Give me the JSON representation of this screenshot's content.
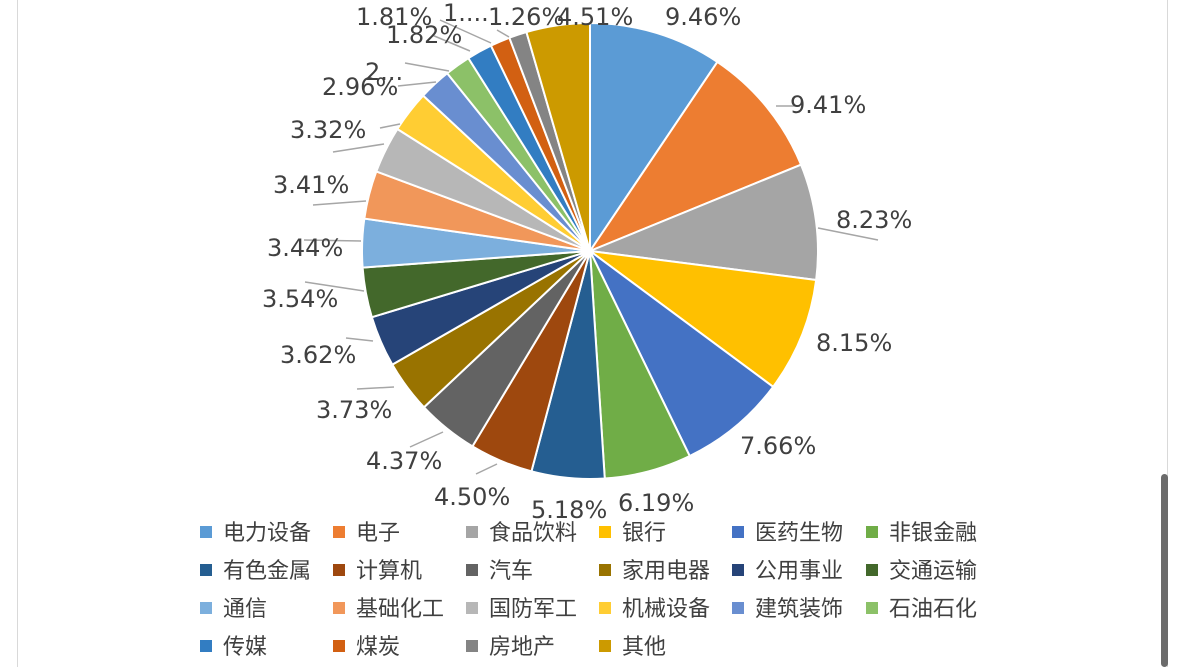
{
  "chart_data": {
    "type": "pie",
    "title": "",
    "categories": [
      "电力设备",
      "电子",
      "食品饮料",
      "银行",
      "医药生物",
      "非银金融",
      "有色金属",
      "计算机",
      "汽车",
      "家用电器",
      "公用事业",
      "交通运输",
      "通信",
      "基础化工",
      "国防军工",
      "机械设备",
      "建筑装饰",
      "石油石化",
      "传媒",
      "煤炭",
      "房地产",
      "其他"
    ],
    "values": [
      9.46,
      9.41,
      8.23,
      8.15,
      7.66,
      6.19,
      5.18,
      4.5,
      4.37,
      3.73,
      3.62,
      3.54,
      3.44,
      3.41,
      3.32,
      2.96,
      2.3,
      1.82,
      1.81,
      1.4,
      1.26,
      4.51
    ],
    "data_labels": [
      "9.46%",
      "9.41%",
      "8.23%",
      "8.15%",
      "7.66%",
      "6.19%",
      "5.18%",
      "4.50%",
      "4.37%",
      "3.73%",
      "3.62%",
      "3.54%",
      "3.44%",
      "3.41%",
      "3.32%",
      "2.96%",
      "2...",
      "1.82%",
      "1.81%",
      "1....",
      "1.26%",
      "4.51%"
    ],
    "colors": [
      "#5b9bd5",
      "#ed7d31",
      "#a5a5a5",
      "#ffc000",
      "#4472c4",
      "#70ad47",
      "#255e91",
      "#9e480e",
      "#636363",
      "#997300",
      "#264478",
      "#43682b",
      "#7cafdd",
      "#f1975a",
      "#b7b7b7",
      "#ffcd33",
      "#698ed0",
      "#8cc168",
      "#327dc2",
      "#d26012",
      "#848484",
      "#cc9a00"
    ],
    "legend_position": "bottom"
  }
}
